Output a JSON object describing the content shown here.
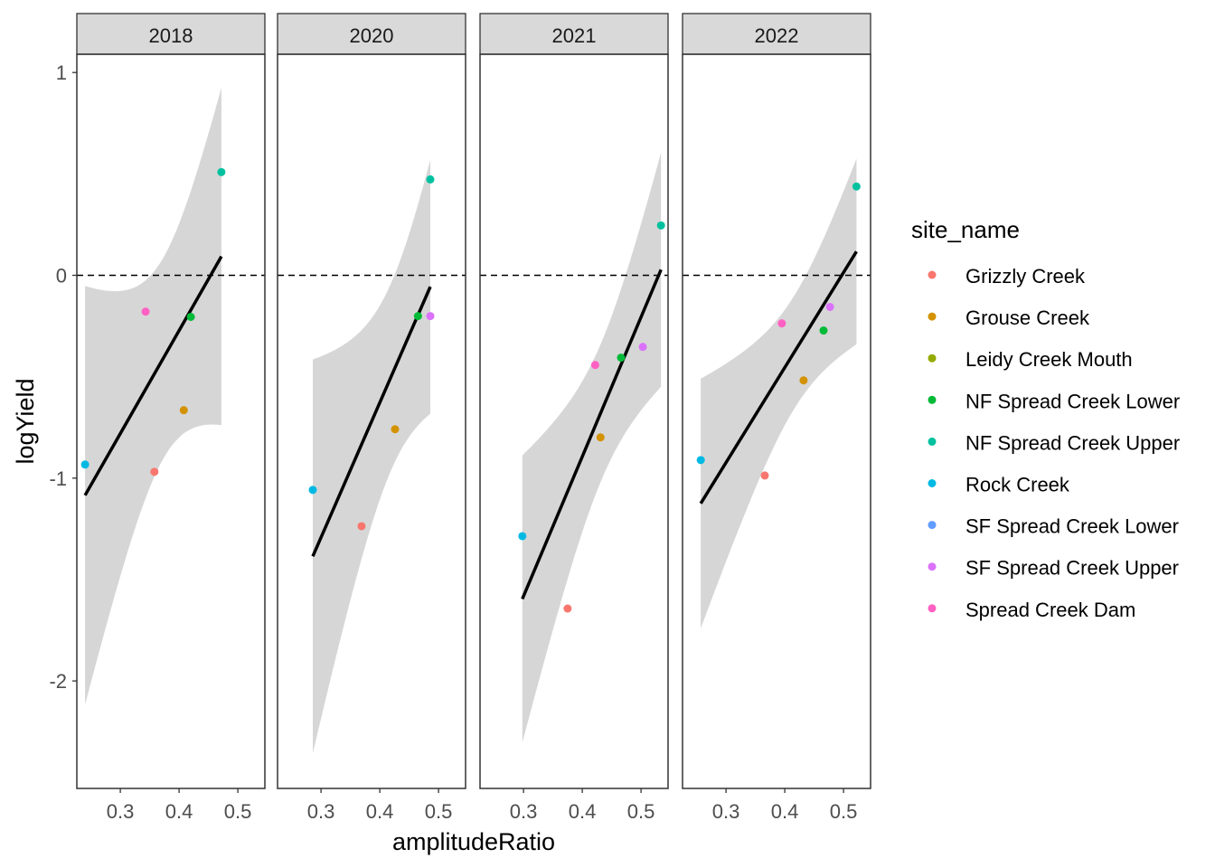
{
  "chart_data": {
    "type": "scatter",
    "xlabel": "amplitudeRatio",
    "ylabel": "logYield",
    "xlim": [
      0.226,
      0.546
    ],
    "ylim": [
      -2.53,
      1.09
    ],
    "x_ticks": [
      0.3,
      0.4,
      0.5
    ],
    "x_tick_labels": [
      "0.3",
      "0.4",
      "0.5"
    ],
    "y_ticks": [
      1,
      0,
      -1,
      -2
    ],
    "y_tick_labels": [
      "1",
      "0",
      "-1",
      "-2"
    ],
    "reference_line": {
      "y": 0,
      "style": "dashed"
    },
    "smooth": {
      "method": "lm",
      "ribbon": "95% confidence interval"
    },
    "grid": false,
    "legend": {
      "title": "site_name",
      "placement": "right",
      "entries": [
        {
          "name": "Grizzly Creek",
          "color": "#F8766D"
        },
        {
          "name": "Grouse Creek",
          "color": "#D39200"
        },
        {
          "name": "Leidy Creek Mouth",
          "color": "#93AA00"
        },
        {
          "name": "NF Spread Creek Lower",
          "color": "#00BA38"
        },
        {
          "name": "NF Spread Creek Upper",
          "color": "#00C19F"
        },
        {
          "name": "Rock Creek",
          "color": "#00B9E3"
        },
        {
          "name": "SF Spread Creek Lower",
          "color": "#619CFF"
        },
        {
          "name": "SF Spread Creek Upper",
          "color": "#DB72FB"
        },
        {
          "name": "Spread Creek Dam",
          "color": "#FF61C3"
        }
      ]
    },
    "facets": [
      {
        "label": "2018",
        "points": [
          {
            "site": "Rock Creek",
            "x": 0.24,
            "y": -0.933
          },
          {
            "site": "Spread Creek Dam",
            "x": 0.343,
            "y": -0.179
          },
          {
            "site": "Grizzly Creek",
            "x": 0.358,
            "y": -0.969
          },
          {
            "site": "Grouse Creek",
            "x": 0.408,
            "y": -0.665
          },
          {
            "site": "NF Spread Creek Lower",
            "x": 0.42,
            "y": -0.205
          },
          {
            "site": "NF Spread Creek Upper",
            "x": 0.472,
            "y": 0.509
          }
        ]
      },
      {
        "label": "2020",
        "points": [
          {
            "site": "Rock Creek",
            "x": 0.286,
            "y": -1.058
          },
          {
            "site": "Grizzly Creek",
            "x": 0.369,
            "y": -1.237
          },
          {
            "site": "Grouse Creek",
            "x": 0.426,
            "y": -0.759
          },
          {
            "site": "NF Spread Creek Lower",
            "x": 0.465,
            "y": -0.201
          },
          {
            "site": "SF Spread Creek Upper",
            "x": 0.486,
            "y": -0.201
          },
          {
            "site": "NF Spread Creek Upper",
            "x": 0.486,
            "y": 0.473
          }
        ]
      },
      {
        "label": "2021",
        "points": [
          {
            "site": "Rock Creek",
            "x": 0.298,
            "y": -1.286
          },
          {
            "site": "Grizzly Creek",
            "x": 0.375,
            "y": -1.643
          },
          {
            "site": "Spread Creek Dam",
            "x": 0.422,
            "y": -0.442
          },
          {
            "site": "Grouse Creek",
            "x": 0.431,
            "y": -0.799
          },
          {
            "site": "NF Spread Creek Lower",
            "x": 0.466,
            "y": -0.406
          },
          {
            "site": "SF Spread Creek Upper",
            "x": 0.503,
            "y": -0.353
          },
          {
            "site": "NF Spread Creek Upper",
            "x": 0.534,
            "y": 0.246
          }
        ]
      },
      {
        "label": "2022",
        "points": [
          {
            "site": "Rock Creek",
            "x": 0.257,
            "y": -0.911
          },
          {
            "site": "Grizzly Creek",
            "x": 0.366,
            "y": -0.987
          },
          {
            "site": "Spread Creek Dam",
            "x": 0.395,
            "y": -0.237
          },
          {
            "site": "Grouse Creek",
            "x": 0.432,
            "y": -0.518
          },
          {
            "site": "NF Spread Creek Lower",
            "x": 0.466,
            "y": -0.272
          },
          {
            "site": "SF Spread Creek Upper",
            "x": 0.477,
            "y": -0.156
          },
          {
            "site": "NF Spread Creek Upper",
            "x": 0.522,
            "y": 0.438
          }
        ]
      }
    ]
  }
}
